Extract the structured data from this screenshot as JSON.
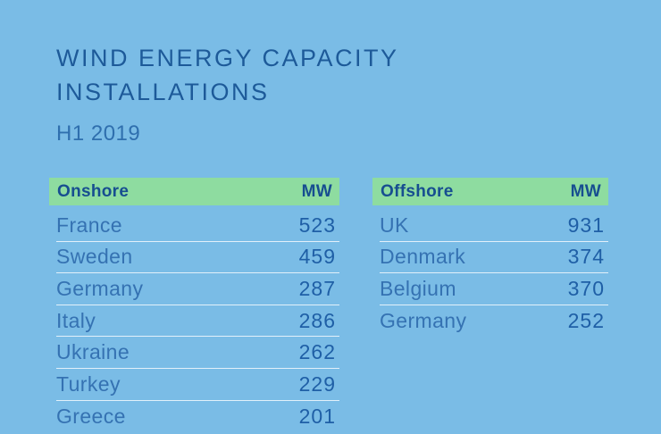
{
  "page": {
    "title_line1": "WIND ENERGY CAPACITY",
    "title_line2": "INSTALLATIONS",
    "subtitle": "H1 2019"
  },
  "colors": {
    "background": "#7ABCE6",
    "header_green": "#8EDCA0",
    "title_blue": "#1D5A99",
    "label_blue": "#3572B2",
    "value_blue": "#1F5FA6",
    "header_text_blue": "#174E90"
  },
  "onshore": {
    "header": "Onshore",
    "unit": "MW",
    "rows": [
      {
        "country": "France",
        "mw": "523"
      },
      {
        "country": "Sweden",
        "mw": "459"
      },
      {
        "country": "Germany",
        "mw": "287"
      },
      {
        "country": "Italy",
        "mw": "286"
      },
      {
        "country": "Ukraine",
        "mw": "262"
      },
      {
        "country": "Turkey",
        "mw": "229"
      },
      {
        "country": "Greece",
        "mw": "201"
      }
    ]
  },
  "offshore": {
    "header": "Offshore",
    "unit": "MW",
    "rows": [
      {
        "country": "UK",
        "mw": "931"
      },
      {
        "country": "Denmark",
        "mw": "374"
      },
      {
        "country": "Belgium",
        "mw": "370"
      },
      {
        "country": "Germany",
        "mw": "252"
      }
    ]
  },
  "chart_data": [
    {
      "type": "table",
      "title": "Onshore",
      "unit": "MW",
      "categories": [
        "France",
        "Sweden",
        "Germany",
        "Italy",
        "Ukraine",
        "Turkey",
        "Greece"
      ],
      "values": [
        523,
        459,
        287,
        286,
        262,
        229,
        201
      ]
    },
    {
      "type": "table",
      "title": "Offshore",
      "unit": "MW",
      "categories": [
        "UK",
        "Denmark",
        "Belgium",
        "Germany"
      ],
      "values": [
        931,
        374,
        370,
        252
      ]
    }
  ]
}
